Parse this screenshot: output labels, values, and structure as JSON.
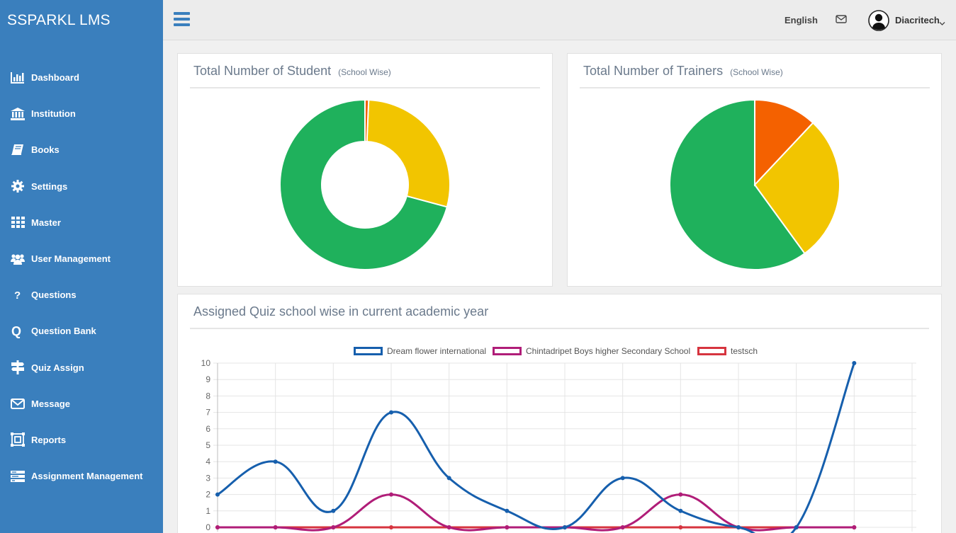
{
  "app": {
    "brand": "SSPARKL LMS"
  },
  "sidebar": {
    "items": [
      {
        "label": "Dashboard",
        "icon": "bar-chart-icon"
      },
      {
        "label": "Institution",
        "icon": "institution-icon"
      },
      {
        "label": "Books",
        "icon": "book-icon"
      },
      {
        "label": "Settings",
        "icon": "gear-icon"
      },
      {
        "label": "Master",
        "icon": "grid-icon"
      },
      {
        "label": "User Management",
        "icon": "users-icon"
      },
      {
        "label": "Questions",
        "icon": "question-icon"
      },
      {
        "label": "Question Bank",
        "icon": "question-bank-icon"
      },
      {
        "label": "Quiz Assign",
        "icon": "signpost-icon"
      },
      {
        "label": "Message",
        "icon": "envelope-icon"
      },
      {
        "label": "Reports",
        "icon": "reports-icon"
      },
      {
        "label": "Assignment Management",
        "icon": "assignment-icon"
      }
    ]
  },
  "header": {
    "language": "English",
    "user_name": "Diacritech"
  },
  "panels": {
    "students": {
      "title": "Total Number of Student",
      "subtitle": "(School Wise)"
    },
    "trainers": {
      "title": "Total Number of Trainers",
      "subtitle": "(School Wise)"
    },
    "quiz": {
      "title": "Assigned Quiz school wise in current academic year"
    }
  },
  "colors": {
    "sidebar": "#3a7fbd",
    "green": "#1fb15c",
    "yellow": "#f2c500",
    "orange": "#f46100",
    "blue": "#165fad",
    "magenta": "#b01d78",
    "red": "#d6343f"
  },
  "chart_data": [
    {
      "type": "pie",
      "variant": "doughnut",
      "values": [
        70.8,
        28.5,
        0.7
      ],
      "colors": [
        "#1fb15c",
        "#f2c500",
        "#f46100"
      ]
    },
    {
      "type": "pie",
      "values": [
        60,
        28,
        12
      ],
      "colors": [
        "#1fb15c",
        "#f2c500",
        "#f46100"
      ]
    },
    {
      "type": "line",
      "smooth": true,
      "grid": true,
      "legend_position": "top",
      "ylim": [
        0,
        10
      ],
      "y_ticks": [
        0,
        1,
        2,
        3,
        4,
        5,
        6,
        7,
        8,
        9,
        10
      ],
      "series": [
        {
          "name": "Dream flower international",
          "color": "#165fad",
          "values": [
            2,
            4,
            1,
            7,
            3,
            1,
            0,
            3,
            1,
            0,
            0,
            10
          ]
        },
        {
          "name": "Chintadripet Boys higher Secondary School",
          "color": "#b01d78",
          "values": [
            0,
            0,
            0,
            2,
            0,
            0,
            0,
            0,
            2,
            0,
            0,
            0
          ]
        },
        {
          "name": "testsch",
          "color": "#d6343f",
          "values": [
            0,
            0,
            0,
            0,
            0,
            0,
            0,
            0,
            0,
            0,
            0,
            0
          ]
        }
      ]
    }
  ]
}
